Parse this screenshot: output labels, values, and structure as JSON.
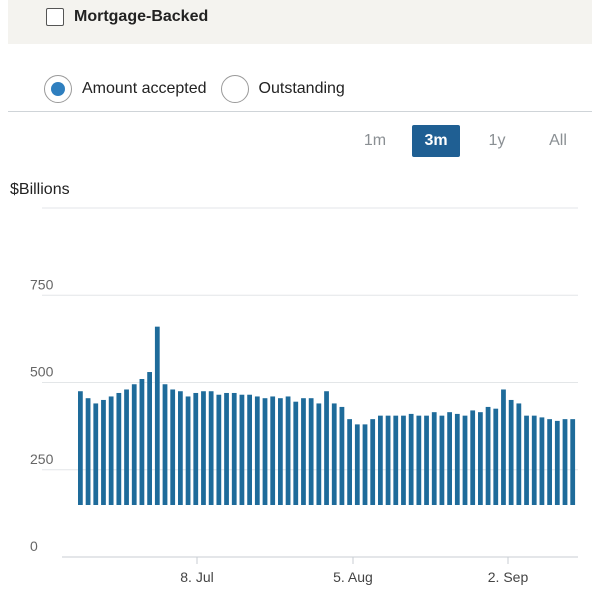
{
  "filters": {
    "mortgage_backed_label": "Mortgage-Backed"
  },
  "mode": {
    "options": [
      {
        "label": "Amount accepted",
        "selected": true
      },
      {
        "label": "Outstanding",
        "selected": false
      }
    ]
  },
  "range": {
    "buttons": [
      "1m",
      "3m",
      "1y",
      "All"
    ],
    "active": "3m"
  },
  "chart_data": {
    "type": "bar",
    "ylabel": "$Billions",
    "ylim": [
      0,
      1000
    ],
    "yticks": [
      0,
      250,
      500,
      750
    ],
    "ytick_labels": [
      "0",
      "250",
      "500",
      "750"
    ],
    "grid": true,
    "xtick_labels": [
      "8. Jul",
      "5. Aug",
      "2. Sep"
    ],
    "bar_color": "#1e6b9a",
    "values": [
      475,
      455,
      440,
      450,
      460,
      470,
      480,
      495,
      510,
      530,
      660,
      495,
      480,
      475,
      460,
      470,
      475,
      475,
      465,
      470,
      470,
      465,
      465,
      460,
      455,
      460,
      455,
      460,
      445,
      455,
      455,
      440,
      475,
      440,
      430,
      395,
      380,
      380,
      395,
      405,
      405,
      405,
      405,
      410,
      405,
      405,
      415,
      405,
      415,
      410,
      405,
      420,
      415,
      430,
      425,
      480,
      450,
      440,
      405,
      405,
      400,
      395,
      390,
      395,
      395
    ]
  }
}
